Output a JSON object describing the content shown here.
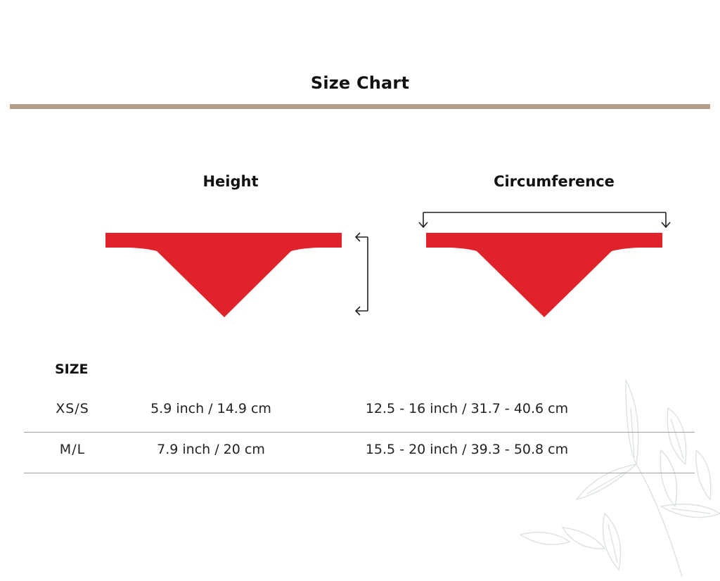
{
  "header": {
    "title": "Size Chart"
  },
  "columns": {
    "height_label": "Height",
    "circumference_label": "Circumference"
  },
  "table": {
    "heading": "SIZE",
    "rows": [
      {
        "size": "XS/S",
        "height": "5.9 inch / 14.9 cm",
        "circumference": "12.5 - 16 inch / 31.7 - 40.6 cm"
      },
      {
        "size": "M/L",
        "height": "7.9 inch / 20 cm",
        "circumference": "15.5 - 20 inch / 39.3 - 50.8 cm"
      }
    ]
  },
  "colors": {
    "accent_rule": "#b49d89",
    "bandana": "#e0222a",
    "divider": "#a0a0a0",
    "leaf_decoration": "#d9e2dc"
  },
  "icons": [
    "bandana-icon",
    "height-arrow-icon",
    "circumference-arrow-icon",
    "leaf-decoration-icon"
  ]
}
